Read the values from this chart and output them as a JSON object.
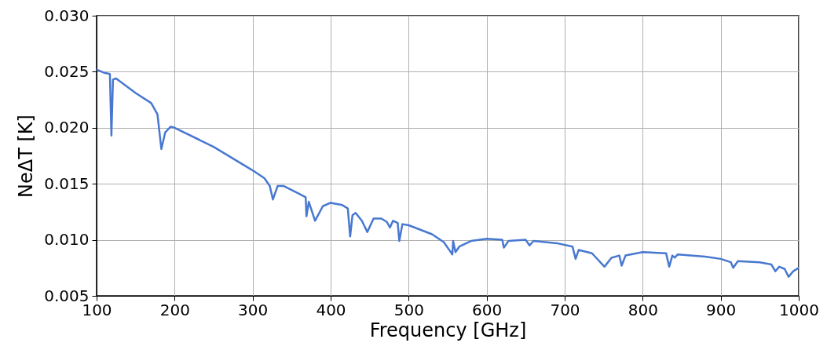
{
  "chart_data": {
    "type": "line",
    "xlabel": "Frequency [GHz]",
    "ylabel": "NeΔT [K]",
    "x": [
      100,
      110,
      117,
      119,
      121,
      125,
      150,
      170,
      178,
      183,
      188,
      195,
      200,
      250,
      300,
      315,
      322,
      326,
      332,
      340,
      360,
      368,
      369,
      372,
      380,
      390,
      400,
      415,
      422,
      425,
      428,
      432,
      440,
      447,
      455,
      465,
      472,
      476,
      480,
      486,
      488,
      492,
      500,
      530,
      545,
      553,
      556,
      557,
      560,
      565,
      580,
      600,
      620,
      622,
      628,
      650,
      655,
      660,
      690,
      710,
      714,
      718,
      735,
      751,
      760,
      770,
      773,
      778,
      800,
      830,
      834,
      838,
      841,
      845,
      880,
      900,
      913,
      916,
      922,
      950,
      965,
      970,
      975,
      982,
      987,
      993,
      1000
    ],
    "series": [
      {
        "color": "#4878d0",
        "values": [
          0.0252,
          0.0249,
          0.0248,
          0.0193,
          0.0243,
          0.0244,
          0.0231,
          0.0222,
          0.0212,
          0.0181,
          0.0196,
          0.0201,
          0.02,
          0.0183,
          0.0162,
          0.0155,
          0.0148,
          0.0136,
          0.0148,
          0.0148,
          0.0141,
          0.0138,
          0.0121,
          0.0134,
          0.0117,
          0.013,
          0.0133,
          0.0131,
          0.0128,
          0.0103,
          0.0122,
          0.0124,
          0.0117,
          0.0107,
          0.0119,
          0.0119,
          0.0116,
          0.0111,
          0.0117,
          0.0115,
          0.0099,
          0.0114,
          0.0113,
          0.0105,
          0.0098,
          0.009,
          0.0087,
          0.0099,
          0.0089,
          0.0094,
          0.0099,
          0.0101,
          0.01,
          0.0093,
          0.0099,
          0.01,
          0.0095,
          0.0099,
          0.0097,
          0.0094,
          0.0083,
          0.0091,
          0.0088,
          0.0076,
          0.0084,
          0.0086,
          0.0077,
          0.0086,
          0.0089,
          0.0088,
          0.0076,
          0.0086,
          0.0084,
          0.0087,
          0.0085,
          0.0083,
          0.008,
          0.0075,
          0.0081,
          0.008,
          0.0078,
          0.0072,
          0.0076,
          0.0074,
          0.0067,
          0.0072,
          0.0075
        ]
      }
    ],
    "xlim": [
      100,
      1000
    ],
    "xticks": [
      100,
      200,
      300,
      400,
      500,
      600,
      700,
      800,
      900,
      1000
    ],
    "ylim": [
      0.005,
      0.03
    ],
    "yticks": [
      0.005,
      {
        "value": 0.01,
        "label": "0.010"
      },
      0.015,
      {
        "value": 0.02,
        "label": "0.020"
      },
      0.025,
      {
        "value": 0.03,
        "label": "0.030"
      }
    ],
    "grid": true,
    "marker": "none",
    "line_style": "solid"
  }
}
